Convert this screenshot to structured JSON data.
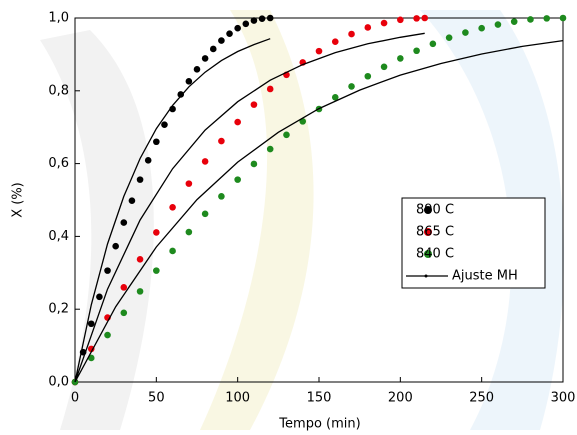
{
  "chart_data": {
    "type": "scatter",
    "x_label": "Tempo (min)",
    "y_label": "X (%)",
    "xlim": [
      0,
      300
    ],
    "xticks": [
      0,
      50,
      100,
      150,
      200,
      250,
      300
    ],
    "ylim": [
      0,
      1
    ],
    "yticks": [
      {
        "value": 0,
        "label": "0,0"
      },
      {
        "value": 0.2,
        "label": "0,2"
      },
      {
        "value": 0.4,
        "label": "0,4"
      },
      {
        "value": 0.6,
        "label": "0,6"
      },
      {
        "value": 0.8,
        "label": "0,8"
      },
      {
        "value": 1,
        "label": "1,0"
      }
    ],
    "legend": "right",
    "series": [
      {
        "name": "890 C",
        "color": "#000000",
        "mode": "markers",
        "x": [
          0,
          5,
          10,
          15,
          20,
          25,
          30,
          35,
          40,
          45,
          50,
          55,
          60,
          65,
          70,
          75,
          80,
          85,
          90,
          95,
          100,
          105,
          110,
          115,
          120
        ],
        "values": [
          0,
          0.082,
          0.16,
          0.234,
          0.306,
          0.373,
          0.438,
          0.498,
          0.556,
          0.609,
          0.66,
          0.707,
          0.75,
          0.79,
          0.826,
          0.859,
          0.889,
          0.915,
          0.938,
          0.957,
          0.972,
          0.984,
          0.993,
          0.998,
          1
        ]
      },
      {
        "name": "865 C",
        "color": "#e8000b",
        "mode": "markers",
        "x": [
          0,
          10,
          20,
          30,
          40,
          50,
          60,
          70,
          80,
          90,
          100,
          110,
          120,
          130,
          140,
          150,
          160,
          170,
          180,
          190,
          200,
          210,
          215
        ],
        "values": [
          0,
          0.091,
          0.177,
          0.26,
          0.337,
          0.411,
          0.48,
          0.545,
          0.606,
          0.662,
          0.714,
          0.762,
          0.805,
          0.844,
          0.878,
          0.909,
          0.935,
          0.956,
          0.974,
          0.986,
          0.995,
          0.999,
          1
        ]
      },
      {
        "name": "840 C",
        "color": "#1e8a1e",
        "mode": "markers",
        "x": [
          0,
          10,
          20,
          30,
          40,
          50,
          60,
          70,
          80,
          90,
          100,
          110,
          120,
          130,
          140,
          150,
          160,
          170,
          180,
          190,
          200,
          210,
          220,
          230,
          240,
          250,
          260,
          270,
          280,
          290,
          300
        ],
        "values": [
          0,
          0.066,
          0.129,
          0.19,
          0.249,
          0.306,
          0.36,
          0.412,
          0.462,
          0.51,
          0.556,
          0.599,
          0.64,
          0.679,
          0.716,
          0.75,
          0.782,
          0.812,
          0.84,
          0.866,
          0.889,
          0.91,
          0.929,
          0.946,
          0.96,
          0.972,
          0.982,
          0.99,
          0.996,
          0.999,
          1
        ]
      },
      {
        "name": "Ajuste MH",
        "color": "#000000",
        "mode": "line",
        "x": [
          0,
          10,
          20,
          30,
          40,
          50,
          60,
          70,
          80,
          90,
          100,
          110,
          120,
          null,
          0,
          20,
          40,
          60,
          80,
          100,
          120,
          140,
          160,
          180,
          200,
          215,
          null,
          0,
          25,
          50,
          75,
          100,
          125,
          150,
          175,
          200,
          225,
          250,
          275,
          300
        ],
        "values": [
          0,
          0.212,
          0.379,
          0.51,
          0.614,
          0.696,
          0.76,
          0.811,
          0.851,
          0.883,
          0.908,
          0.927,
          0.943,
          null,
          0,
          0.255,
          0.445,
          0.586,
          0.692,
          0.77,
          0.829,
          0.872,
          0.905,
          0.929,
          0.947,
          0.958,
          null,
          0,
          0.207,
          0.371,
          0.501,
          0.604,
          0.686,
          0.751,
          0.802,
          0.843,
          0.875,
          0.901,
          0.922,
          0.938
        ]
      }
    ]
  }
}
